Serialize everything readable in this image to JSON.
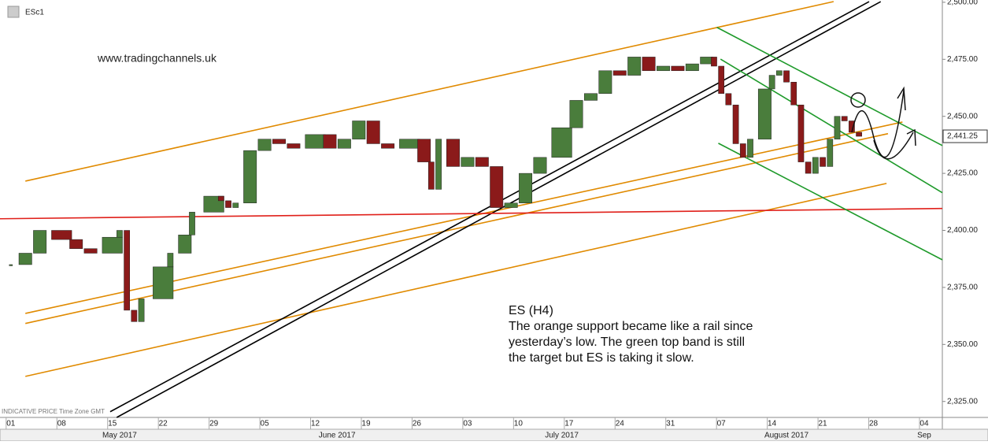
{
  "header": {
    "symbol": "ESc1",
    "footer": "INDICATIVE PRICE   Time Zone GMT"
  },
  "chart_data": {
    "type": "candlestick",
    "website": "www.tradingchannels.uk",
    "annotation_title": "ES (H4)",
    "annotation_lines": [
      "The orange support became like a rail since",
      "yesterday’s low. The green top band is still",
      "the target but ES is taking it slow."
    ],
    "last_price": {
      "value": 2441.25,
      "label": "2,441.25"
    },
    "up_color": "#4a7d3c",
    "down_color": "#8b1a1a",
    "x": [
      0,
      2,
      4,
      7,
      9,
      11,
      14,
      15,
      16,
      17,
      18,
      21,
      22,
      24,
      25,
      28,
      29,
      30,
      31,
      33,
      35,
      37,
      39,
      42,
      44,
      46,
      48,
      50,
      52,
      55,
      57,
      58,
      59,
      61,
      63,
      65,
      67,
      69,
      71,
      73,
      76,
      78,
      80,
      82,
      84,
      86,
      88,
      90,
      92,
      94,
      96,
      97,
      98,
      99,
      100,
      101,
      102,
      104,
      105,
      106,
      107,
      108,
      109,
      110,
      111,
      112,
      113,
      114,
      115,
      116,
      117
    ],
    "close": [
      2385,
      2390,
      2400,
      2396,
      2392,
      2390,
      2397,
      2400,
      2365,
      2360,
      2370,
      2384,
      2390,
      2398,
      2408,
      2415,
      2413,
      2410,
      2412,
      2435,
      2440,
      2438,
      2436,
      2442,
      2436,
      2440,
      2448,
      2438,
      2436,
      2440,
      2430,
      2418,
      2440,
      2428,
      2432,
      2428,
      2410,
      2412,
      2425,
      2432,
      2445,
      2457,
      2460,
      2470,
      2468,
      2476,
      2470,
      2472,
      2470,
      2473,
      2476,
      2472,
      2460,
      2455,
      2438,
      2432,
      2440,
      2462,
      2468,
      2470,
      2465,
      2455,
      2430,
      2425,
      2432,
      2428,
      2440,
      2450,
      2448,
      2443,
      2441.25
    ],
    "xlim": [
      -1.5,
      128.5
    ],
    "xticks": [
      {
        "value": 0,
        "label": "01"
      },
      {
        "value": 7,
        "label": "08"
      },
      {
        "value": 14,
        "label": "15"
      },
      {
        "value": 21,
        "label": "22"
      },
      {
        "value": 28,
        "label": "29"
      },
      {
        "value": 35,
        "label": "05"
      },
      {
        "value": 42,
        "label": "12"
      },
      {
        "value": 49,
        "label": "19"
      },
      {
        "value": 56,
        "label": "26"
      },
      {
        "value": 63,
        "label": "03"
      },
      {
        "value": 70,
        "label": "10"
      },
      {
        "value": 77,
        "label": "17"
      },
      {
        "value": 84,
        "label": "24"
      },
      {
        "value": 91,
        "label": "31"
      },
      {
        "value": 98,
        "label": "07"
      },
      {
        "value": 105,
        "label": "14"
      },
      {
        "value": 112,
        "label": "21"
      },
      {
        "value": 119,
        "label": "28"
      },
      {
        "value": 126,
        "label": "04"
      }
    ],
    "months": [
      {
        "value": 15,
        "label": "May 2017"
      },
      {
        "value": 45,
        "label": "June 2017"
      },
      {
        "value": 76,
        "label": "July 2017"
      },
      {
        "value": 107,
        "label": "August 2017"
      },
      {
        "value": 126,
        "label": "Sep"
      }
    ],
    "ylim": [
      2318,
      2501
    ],
    "yticks": [
      {
        "value": 2325,
        "label": "2,325.00"
      },
      {
        "value": 2350,
        "label": "2,350.00"
      },
      {
        "value": 2375,
        "label": "2,375.00"
      },
      {
        "value": 2400,
        "label": "2,400.00"
      },
      {
        "value": 2425,
        "label": "2,425.00"
      },
      {
        "value": 2450,
        "label": "2,450.00"
      },
      {
        "value": 2475,
        "label": "2,475.00"
      },
      {
        "value": 2500,
        "label": "2,500.00"
      }
    ],
    "trendlines": [
      {
        "color": "#e08a00",
        "x": [
          2,
          113.5
        ],
        "y": [
          2421.6,
          2500.3
        ]
      },
      {
        "color": "#e08a00",
        "x": [
          2,
          123
        ],
        "y": [
          2363.6,
          2447.5
        ]
      },
      {
        "color": "#e08a00",
        "x": [
          2,
          121
        ],
        "y": [
          2359.2,
          2442.4
        ]
      },
      {
        "color": "#e08a00",
        "x": [
          2,
          120.8
        ],
        "y": [
          2336,
          2420.6
        ]
      },
      {
        "color": "#000000",
        "x": [
          13.7,
          118.4
        ],
        "y": [
          2320.5,
          2500.3
        ]
      },
      {
        "color": "#000000",
        "x": [
          14.6,
          120
        ],
        "y": [
          2318,
          2500.3
        ]
      },
      {
        "color": "#e0201a",
        "x": [
          -1.5,
          128.5
        ],
        "y": [
          2405.1,
          2409.6
        ]
      },
      {
        "color": "#1e9a2a",
        "x": [
          97.4,
          128.5
        ],
        "y": [
          2489,
          2437.2
        ]
      },
      {
        "color": "#1e9a2a",
        "x": [
          97.9,
          128.5
        ],
        "y": [
          2475.1,
          2416.5
        ]
      },
      {
        "color": "#1e9a2a",
        "x": [
          97.6,
          128.5
        ],
        "y": [
          2438.2,
          2387.1
        ]
      }
    ]
  }
}
